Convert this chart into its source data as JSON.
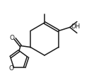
{
  "bg_color": "#ffffff",
  "bond_color": "#1a1a1a",
  "lw": 1.1,
  "fig_width": 1.26,
  "fig_height": 1.17,
  "dpi": 100,
  "xlim": [
    0,
    126
  ],
  "ylim": [
    0,
    117
  ]
}
